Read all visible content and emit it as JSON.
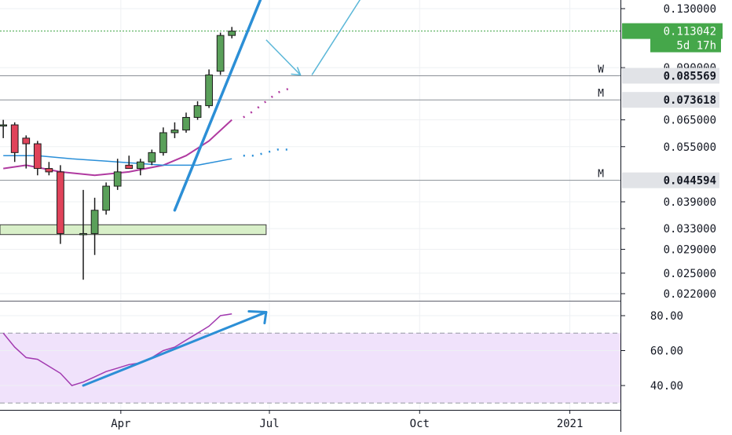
{
  "colors": {
    "background": "#ffffff",
    "grid": "#eef0f3",
    "axis_text": "#131722",
    "up_candle": "#5aa05a",
    "down_candle": "#e0435a",
    "ma_fast": "#b03aa0",
    "ma_slow": "#2a8fd8",
    "trendline": "#2c8fd6",
    "projection_arrow": "#5bb7d8",
    "last_price_badge": "#45a74a",
    "level_line": "#8a8f96",
    "support_zone": "#d8efc8",
    "rsi_band": "#f0e2fb",
    "rsi_line": "#a23ab0"
  },
  "chart_data": [
    {
      "type": "candlestick",
      "panel": "price",
      "ylim": [
        0.02,
        0.15
      ],
      "y_ticks": [
        "0.130000",
        "0.090000",
        "0.065000",
        "0.055000",
        "0.039000",
        "0.033000",
        "0.029000",
        "0.025000",
        "0.022000"
      ],
      "y_tick_values": [
        0.13,
        0.09,
        0.065,
        0.055,
        0.039,
        0.033,
        0.029,
        0.025,
        0.022
      ],
      "x_ticks": [
        "Apr",
        "Jul",
        "Oct",
        "2021"
      ],
      "x_tick_dates": [
        "2020-04-01",
        "2020-07-01",
        "2020-10-01",
        "2021-01-01"
      ],
      "xlim": [
        "2020-01-18",
        "2021-02-01"
      ],
      "candles": [
        {
          "date": "2020-01-20",
          "open": 0.063,
          "high": 0.065,
          "low": 0.058,
          "close": 0.063
        },
        {
          "date": "2020-01-27",
          "open": 0.063,
          "high": 0.064,
          "low": 0.05,
          "close": 0.053
        },
        {
          "date": "2020-02-03",
          "open": 0.058,
          "high": 0.059,
          "low": 0.048,
          "close": 0.056
        },
        {
          "date": "2020-02-10",
          "open": 0.056,
          "high": 0.057,
          "low": 0.046,
          "close": 0.048
        },
        {
          "date": "2020-02-17",
          "open": 0.048,
          "high": 0.05,
          "low": 0.046,
          "close": 0.047
        },
        {
          "date": "2020-02-24",
          "open": 0.047,
          "high": 0.049,
          "low": 0.03,
          "close": 0.032
        },
        {
          "date": "2020-03-09",
          "open": 0.032,
          "high": 0.042,
          "low": 0.024,
          "close": 0.032
        },
        {
          "date": "2020-03-16",
          "open": 0.032,
          "high": 0.04,
          "low": 0.028,
          "close": 0.037
        },
        {
          "date": "2020-03-23",
          "open": 0.037,
          "high": 0.044,
          "low": 0.036,
          "close": 0.043
        },
        {
          "date": "2020-03-30",
          "open": 0.043,
          "high": 0.051,
          "low": 0.042,
          "close": 0.047
        },
        {
          "date": "2020-04-06",
          "open": 0.049,
          "high": 0.052,
          "low": 0.048,
          "close": 0.048
        },
        {
          "date": "2020-04-13",
          "open": 0.048,
          "high": 0.051,
          "low": 0.046,
          "close": 0.05
        },
        {
          "date": "2020-04-20",
          "open": 0.05,
          "high": 0.054,
          "low": 0.049,
          "close": 0.053
        },
        {
          "date": "2020-04-27",
          "open": 0.053,
          "high": 0.062,
          "low": 0.052,
          "close": 0.06
        },
        {
          "date": "2020-05-04",
          "open": 0.06,
          "high": 0.064,
          "low": 0.058,
          "close": 0.061
        },
        {
          "date": "2020-05-11",
          "open": 0.061,
          "high": 0.068,
          "low": 0.06,
          "close": 0.066
        },
        {
          "date": "2020-05-18",
          "open": 0.066,
          "high": 0.073,
          "low": 0.065,
          "close": 0.071
        },
        {
          "date": "2020-05-25",
          "open": 0.071,
          "high": 0.089,
          "low": 0.07,
          "close": 0.086
        },
        {
          "date": "2020-06-01",
          "open": 0.088,
          "high": 0.112,
          "low": 0.086,
          "close": 0.11
        },
        {
          "date": "2020-06-08",
          "open": 0.11,
          "high": 0.116,
          "low": 0.108,
          "close": 0.113
        }
      ],
      "ma_fast": [
        {
          "date": "2020-01-20",
          "value": 0.048
        },
        {
          "date": "2020-02-03",
          "value": 0.049
        },
        {
          "date": "2020-02-24",
          "value": 0.047
        },
        {
          "date": "2020-03-16",
          "value": 0.046
        },
        {
          "date": "2020-04-06",
          "value": 0.047
        },
        {
          "date": "2020-04-27",
          "value": 0.049
        },
        {
          "date": "2020-05-11",
          "value": 0.052
        },
        {
          "date": "2020-05-25",
          "value": 0.057
        },
        {
          "date": "2020-06-08",
          "value": 0.065
        }
      ],
      "ma_fast_projection": [
        {
          "date": "2020-06-15",
          "value": 0.066
        },
        {
          "date": "2020-06-22",
          "value": 0.069
        },
        {
          "date": "2020-06-29",
          "value": 0.073
        },
        {
          "date": "2020-07-06",
          "value": 0.077
        },
        {
          "date": "2020-07-13",
          "value": 0.079
        }
      ],
      "ma_slow": [
        {
          "date": "2020-01-20",
          "value": 0.052
        },
        {
          "date": "2020-02-10",
          "value": 0.052
        },
        {
          "date": "2020-03-02",
          "value": 0.051
        },
        {
          "date": "2020-03-30",
          "value": 0.05
        },
        {
          "date": "2020-04-27",
          "value": 0.049
        },
        {
          "date": "2020-05-18",
          "value": 0.049
        },
        {
          "date": "2020-06-08",
          "value": 0.051
        }
      ],
      "ma_slow_projection": [
        {
          "date": "2020-06-15",
          "value": 0.052
        },
        {
          "date": "2020-06-22",
          "value": 0.052
        },
        {
          "date": "2020-06-29",
          "value": 0.053
        },
        {
          "date": "2020-07-06",
          "value": 0.054
        },
        {
          "date": "2020-07-13",
          "value": 0.054
        }
      ],
      "trendline": [
        {
          "date": "2020-05-04",
          "value": 0.037
        },
        {
          "date": "2020-06-29",
          "value": 0.15
        }
      ],
      "projection_arrow": [
        {
          "date": "2020-06-29",
          "value": 0.107
        },
        {
          "date": "2020-07-20",
          "value": 0.086
        },
        {
          "date": "2020-07-27",
          "value": 0.086
        },
        {
          "date": "2020-08-31",
          "value": 0.15
        }
      ],
      "last_price": {
        "value": 0.113042,
        "label": "0.113042",
        "countdown": "5d 17h"
      },
      "levels": [
        {
          "value": 0.085569,
          "label": "0.085569",
          "tag": "W"
        },
        {
          "value": 0.073618,
          "label": "0.073618",
          "tag": "M"
        },
        {
          "value": 0.044594,
          "label": "0.044594",
          "tag": "M"
        }
      ],
      "support_zone": {
        "from": "2020-01-18",
        "to": "2020-06-29",
        "low": 0.0318,
        "high": 0.0338
      }
    },
    {
      "type": "line",
      "panel": "oscillator",
      "ylim": [
        29,
        86
      ],
      "y_ticks": [
        "80.00",
        "60.00",
        "40.00"
      ],
      "y_tick_values": [
        80,
        60,
        40
      ],
      "band": [
        30,
        70
      ],
      "series": [
        {
          "values": [
            {
              "date": "2020-01-20",
              "value": 70
            },
            {
              "date": "2020-01-27",
              "value": 62
            },
            {
              "date": "2020-02-03",
              "value": 56
            },
            {
              "date": "2020-02-10",
              "value": 55
            },
            {
              "date": "2020-02-24",
              "value": 47
            },
            {
              "date": "2020-03-02",
              "value": 40
            },
            {
              "date": "2020-03-09",
              "value": 42
            },
            {
              "date": "2020-03-16",
              "value": 45
            },
            {
              "date": "2020-03-23",
              "value": 48
            },
            {
              "date": "2020-03-30",
              "value": 50
            },
            {
              "date": "2020-04-06",
              "value": 52
            },
            {
              "date": "2020-04-13",
              "value": 53
            },
            {
              "date": "2020-04-20",
              "value": 56
            },
            {
              "date": "2020-04-27",
              "value": 60
            },
            {
              "date": "2020-05-04",
              "value": 62
            },
            {
              "date": "2020-05-11",
              "value": 66
            },
            {
              "date": "2020-05-18",
              "value": 70
            },
            {
              "date": "2020-05-25",
              "value": 74
            },
            {
              "date": "2020-06-01",
              "value": 80
            },
            {
              "date": "2020-06-08",
              "value": 81
            }
          ]
        }
      ],
      "trendline": [
        {
          "date": "2020-03-09",
          "value": 40
        },
        {
          "date": "2020-06-29",
          "value": 82
        }
      ]
    }
  ]
}
